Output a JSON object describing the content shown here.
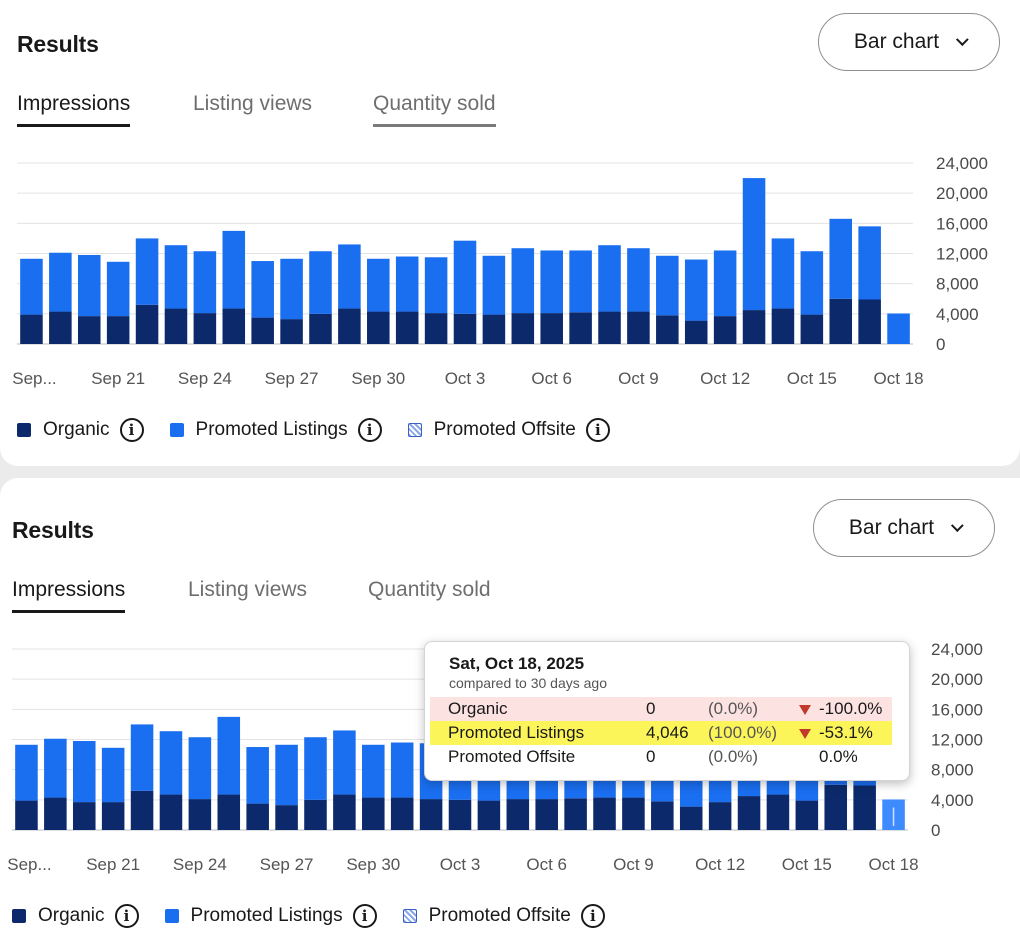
{
  "panels": [
    {
      "title": "Results",
      "dropdown_label": "Bar chart",
      "tabs": [
        "Impressions",
        "Listing views",
        "Quantity sold"
      ]
    },
    {
      "title": "Results",
      "dropdown_label": "Bar chart",
      "tabs": [
        "Impressions",
        "Listing views",
        "Quantity sold"
      ]
    }
  ],
  "legend": {
    "organic": "Organic",
    "promoted_listings": "Promoted Listings",
    "promoted_offsite": "Promoted Offsite",
    "info_glyph": "i"
  },
  "colors": {
    "organic": "#0c2a6b",
    "promoted_listings": "#1a6ef0",
    "gridline": "#e3e3e3",
    "highlight_red": "#fde2e2",
    "highlight_yellow": "#fbf55a"
  },
  "tooltip": {
    "date": "Sat, Oct 18, 2025",
    "subtitle": "compared to 30 days ago",
    "rows": [
      {
        "name": "Organic",
        "value": "0",
        "pct": "(0.0%)",
        "change": "-100.0%",
        "down": true,
        "highlight": "red"
      },
      {
        "name": "Promoted Listings",
        "value": "4,046",
        "pct": "(100.0%)",
        "change": "-53.1%",
        "down": true,
        "highlight": "yellow"
      },
      {
        "name": "Promoted Offsite",
        "value": "0",
        "pct": "(0.0%)",
        "change": "0.0%",
        "down": false,
        "highlight": "none"
      }
    ]
  },
  "chart_data": {
    "type": "bar",
    "stacked": true,
    "y_ticks": [
      "24,000",
      "20,000",
      "16,000",
      "12,000",
      "8,000",
      "4,000",
      "0"
    ],
    "ylim": [
      0,
      24000
    ],
    "x_tick_labels": [
      "Sep...",
      "Sep 21",
      "Sep 24",
      "Sep 27",
      "Sep 30",
      "Oct 3",
      "Oct 6",
      "Oct 9",
      "Oct 12",
      "Oct 15",
      "Oct 18"
    ],
    "grid": true,
    "legend_position": "bottom-left",
    "series": [
      {
        "name": "Organic",
        "values": [
          3900,
          4300,
          3700,
          3700,
          5200,
          4700,
          4100,
          4700,
          3500,
          3300,
          4000,
          4700,
          4300,
          4300,
          4100,
          4000,
          3900,
          4100,
          4100,
          4200,
          4300,
          4300,
          3800,
          3100,
          3700,
          4500,
          4700,
          3900,
          6000,
          5900,
          0
        ]
      },
      {
        "name": "Promoted Listings",
        "values": [
          7400,
          7800,
          8100,
          7200,
          8800,
          8400,
          8200,
          10300,
          7500,
          8000,
          8300,
          8500,
          7000,
          7300,
          7400,
          9700,
          7800,
          8600,
          8300,
          8200,
          8800,
          8400,
          7900,
          8100,
          8700,
          17500,
          9300,
          8400,
          10600,
          9700,
          4046
        ]
      },
      {
        "name": "Promoted Offsite",
        "values": [
          0,
          0,
          0,
          0,
          0,
          0,
          0,
          0,
          0,
          0,
          0,
          0,
          0,
          0,
          0,
          0,
          0,
          0,
          0,
          0,
          0,
          0,
          0,
          0,
          0,
          0,
          0,
          0,
          0,
          0,
          0
        ]
      }
    ]
  }
}
